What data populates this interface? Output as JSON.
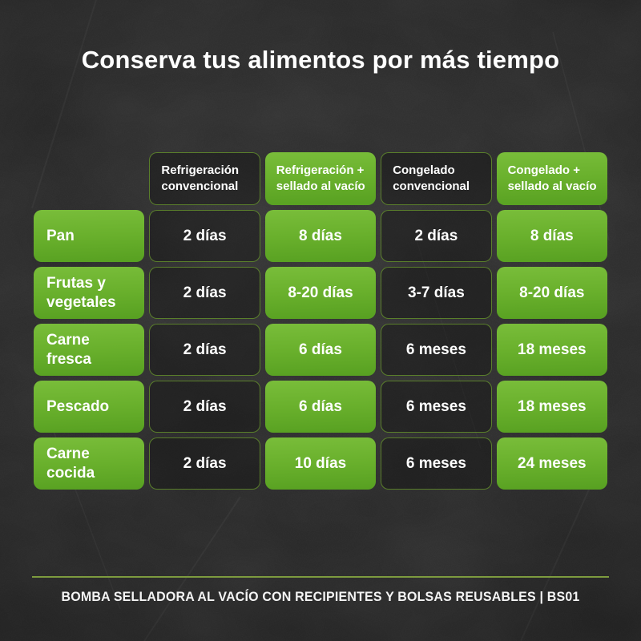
{
  "title": "Conserva tus alimentos por más tiempo",
  "chart_data": {
    "type": "table",
    "title": "Conserva tus alimentos por más tiempo",
    "columns": [
      {
        "label": "Refrigeración convencional",
        "highlight": false
      },
      {
        "label": "Refrigeración + sellado al vacío",
        "highlight": true
      },
      {
        "label": "Congelado convencional",
        "highlight": false
      },
      {
        "label": "Congelado + sellado al vacío",
        "highlight": true
      }
    ],
    "rows": [
      {
        "label": "Pan",
        "values": [
          "2 días",
          "8 días",
          "2 días",
          "8 días"
        ]
      },
      {
        "label": "Frutas y vegetales",
        "values": [
          "2 días",
          "8-20 días",
          "3-7 días",
          "8-20 días"
        ]
      },
      {
        "label": "Carne fresca",
        "values": [
          "2 días",
          "6 días",
          "6 meses",
          "18 meses"
        ]
      },
      {
        "label": "Pescado",
        "values": [
          "2 días",
          "6 días",
          "6 meses",
          "18 meses"
        ]
      },
      {
        "label": "Carne cocida",
        "values": [
          "2 días",
          "10 días",
          "6 meses",
          "24 meses"
        ]
      }
    ],
    "legend_note": "Green cells mark food categories and vacuum-sealed storage times; dark bordered cells mark conventional storage times"
  },
  "footer": {
    "caption": "BOMBA SELLADORA AL VACÍO CON RECIPIENTES Y BOLSAS REUSABLES | BS01"
  },
  "colors": {
    "background": "#242424",
    "accent_green": "#68b02c",
    "green_gradient_top": "#79bd3a",
    "green_gradient_bottom": "#57a021",
    "dark_cell_border": "#6c9e2d",
    "divider": "#7d9b3e",
    "text": "#ffffff"
  }
}
